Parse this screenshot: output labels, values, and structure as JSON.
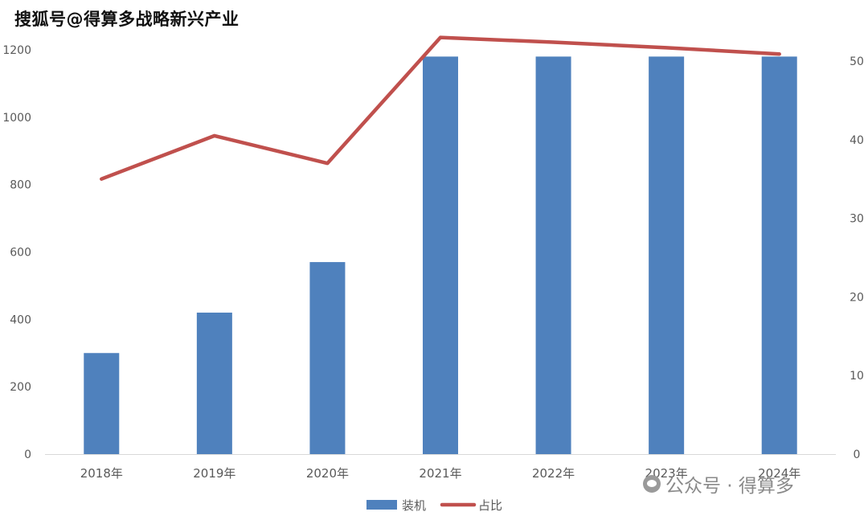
{
  "watermark_top": "搜狐号@得算多战略新兴产业",
  "watermark_bottom": "公众号 · 得算多",
  "colors": {
    "bar": "#4F81BD",
    "line": "#C0504D",
    "axis_text": "#595959",
    "axis_line": "#D9D9D9"
  },
  "chart_data": {
    "type": "bar",
    "categories": [
      "2018年",
      "2019年",
      "2020年",
      "2021年",
      "2022年",
      "2023年",
      "2024年"
    ],
    "series": [
      {
        "name": "装机",
        "type": "bar",
        "axis": "left",
        "values": [
          300,
          420,
          570,
          1180,
          1180,
          1180,
          1180
        ]
      },
      {
        "name": "占比",
        "type": "line",
        "axis": "right",
        "values": [
          35,
          40.5,
          37,
          53,
          52.4,
          51.7,
          50.9
        ]
      }
    ],
    "y_left": {
      "range": [
        0,
        1200
      ],
      "ticks": [
        "0",
        "200",
        "400",
        "600",
        "800",
        "1000",
        "1200"
      ]
    },
    "y_right": {
      "range": [
        0,
        50
      ],
      "ticks": [
        "0",
        "10",
        "20",
        "30",
        "40",
        "50"
      ]
    },
    "grid": false,
    "legend_position": "bottom"
  }
}
